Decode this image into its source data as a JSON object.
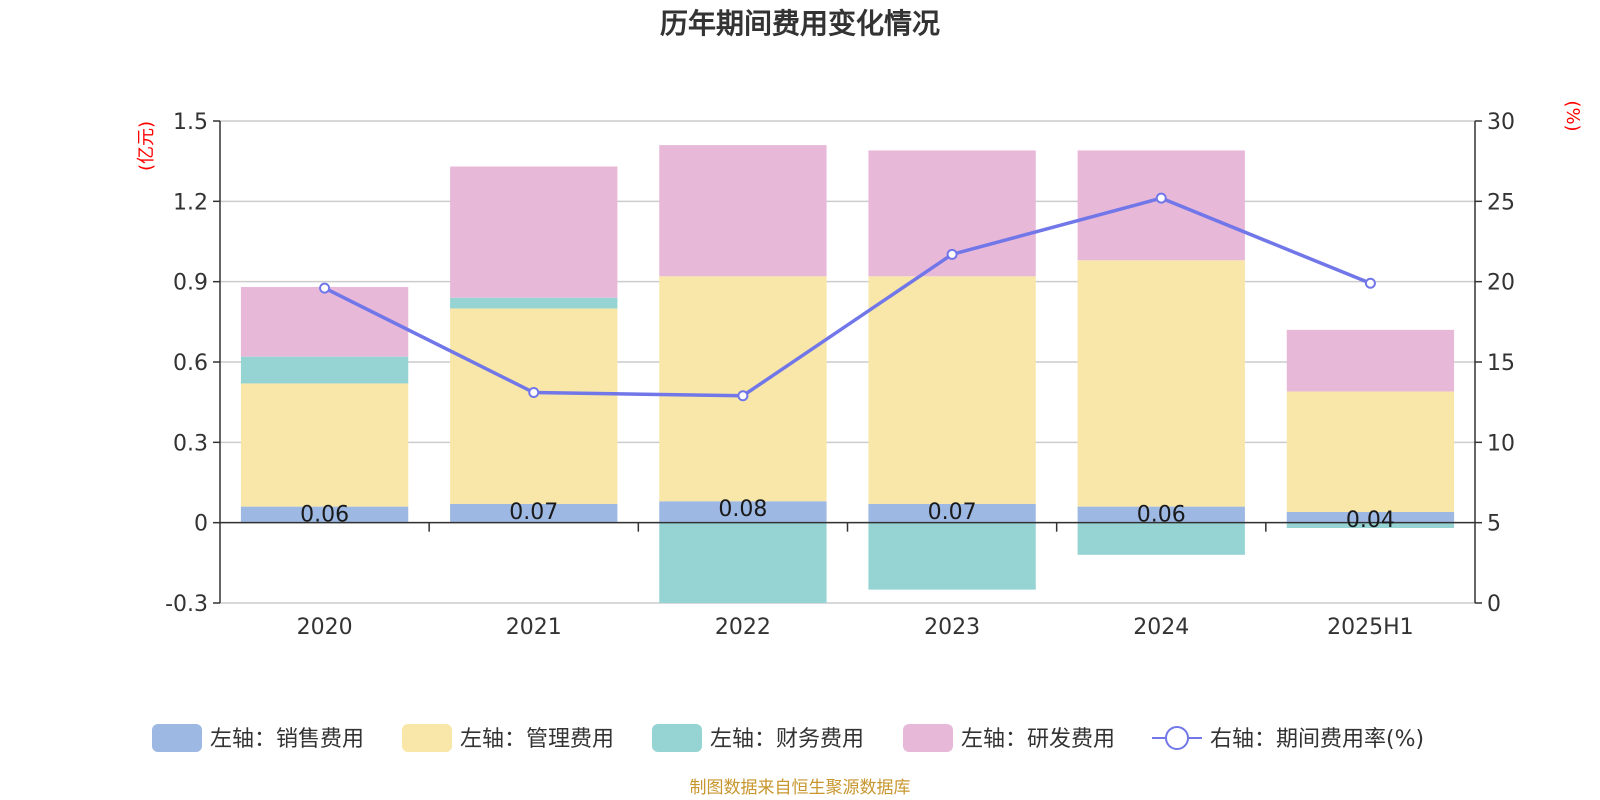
{
  "chart_data": {
    "type": "bar",
    "title": "历年期间费用变化情况",
    "categories": [
      "2020",
      "2021",
      "2022",
      "2023",
      "2024",
      "2025H1"
    ],
    "left_axis": {
      "unit": "(亿元)",
      "ylim": [
        -0.3,
        1.5
      ],
      "ticks": [
        "-0.3",
        "0",
        "0.3",
        "0.6",
        "0.9",
        "1.2",
        "1.5"
      ]
    },
    "right_axis": {
      "unit": "(%)",
      "ylim": [
        0,
        30
      ],
      "ticks": [
        "0",
        "5",
        "10",
        "15",
        "20",
        "25",
        "30"
      ]
    },
    "series": [
      {
        "name": "左轴：销售费用",
        "type": "bar",
        "color": "#9db8e2",
        "values": [
          0.06,
          0.07,
          0.08,
          0.07,
          0.06,
          0.04
        ],
        "labels": [
          "0.06",
          "0.07",
          "0.08",
          "0.07",
          "0.06",
          "0.04"
        ]
      },
      {
        "name": "左轴：管理费用",
        "type": "bar",
        "color": "#f8e7a9",
        "values": [
          0.46,
          0.73,
          0.84,
          0.85,
          0.92,
          0.45
        ]
      },
      {
        "name": "左轴：财务费用",
        "type": "bar",
        "color": "#96d4d4",
        "values": [
          0.1,
          0.04,
          -0.3,
          -0.25,
          -0.12,
          -0.02
        ]
      },
      {
        "name": "左轴：研发费用",
        "type": "bar",
        "color": "#e8b8d9",
        "values": [
          0.26,
          0.49,
          0.49,
          0.47,
          0.41,
          0.23
        ]
      },
      {
        "name": "右轴：期间费用率(%)",
        "type": "line",
        "color": "#7177e8",
        "values": [
          19.6,
          13.1,
          12.9,
          21.7,
          25.2,
          19.9
        ]
      }
    ],
    "grid": true,
    "legend_position": "bottom"
  },
  "source_note": "制图数据来自恒生聚源数据库"
}
